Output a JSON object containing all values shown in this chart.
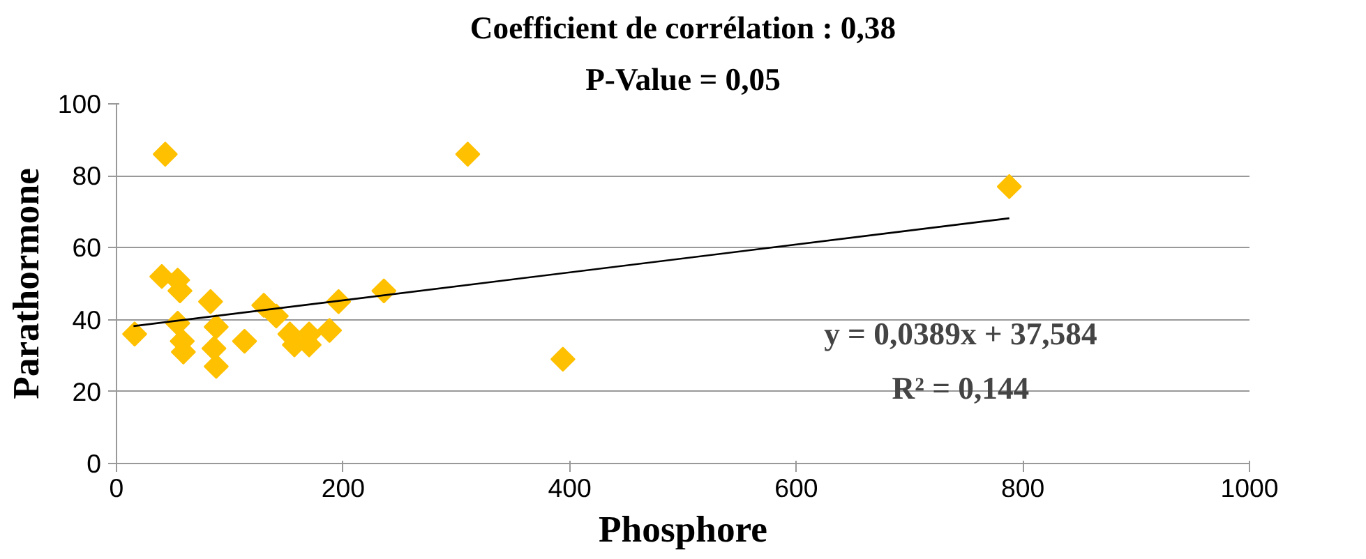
{
  "chart_data": {
    "type": "scatter",
    "title": "Coefficient de corrélation : 0,38",
    "subtitle": "P-Value = 0,05",
    "xlabel": "Phosphore",
    "ylabel": "Parathormone",
    "annotations": [
      "y = 0,0389x + 37,584",
      "R² = 0,144"
    ],
    "series": [
      {
        "color": "#ffc000",
        "marker": "diamond",
        "x": [
          16,
          43,
          40,
          54,
          56,
          54,
          58,
          59,
          83,
          88,
          86,
          88,
          113,
          130,
          141,
          153,
          157,
          170,
          170,
          188,
          196,
          236,
          310,
          394,
          788
        ],
        "values": [
          36,
          86,
          52,
          51,
          48,
          39,
          34,
          31,
          45,
          38,
          32,
          27,
          34,
          44,
          41,
          36,
          33,
          33,
          36,
          37,
          45,
          48,
          86,
          29,
          77
        ]
      },
      {
        "type": "line",
        "color": "#000000",
        "x": [
          15,
          788
        ],
        "values": [
          38.2,
          68.2
        ]
      }
    ],
    "xlim": [
      0,
      1000
    ],
    "xticks": [
      0,
      200,
      400,
      600,
      800,
      1000
    ],
    "ylim": [
      0,
      100
    ],
    "yticks": [
      0,
      20,
      40,
      60,
      80,
      100
    ],
    "grid": "y"
  }
}
